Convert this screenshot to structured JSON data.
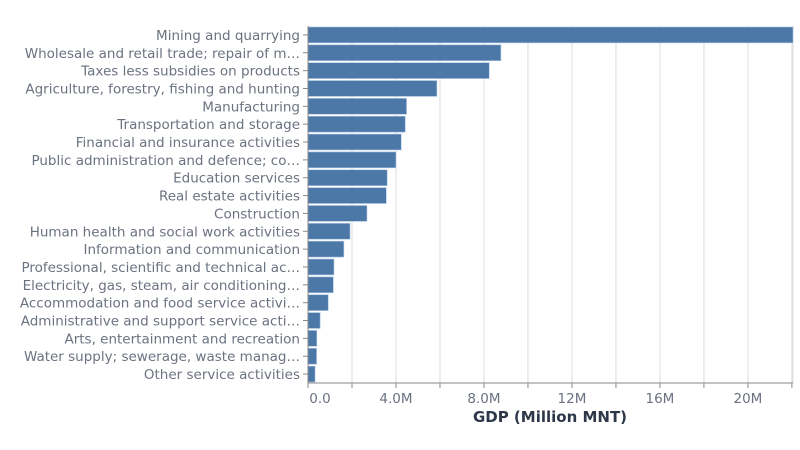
{
  "chart_data": {
    "type": "bar",
    "orientation": "horizontal",
    "title": "",
    "xlabel": "GDP (Million MNT)",
    "ylabel": "",
    "xlim": [
      0,
      22.05
    ],
    "x_unit_note": "values in millions (M) as printed on axis ticks",
    "x_ticks": [
      {
        "value": 0,
        "label": "0.0"
      },
      {
        "value": 4,
        "label": "4.0M"
      },
      {
        "value": 8,
        "label": "8.0M"
      },
      {
        "value": 12,
        "label": "12M"
      },
      {
        "value": 16,
        "label": "16M"
      },
      {
        "value": 20,
        "label": "20M"
      }
    ],
    "grid_step": 2,
    "grid": true,
    "bar_color": "#4c78a8",
    "categories": [
      "Mining and quarrying",
      "Wholesale and retail trade; repair of m…",
      "Taxes less subsidies on products",
      "Agriculture, forestry, fishing and hunting",
      "Manufacturing",
      "Transportation and storage",
      "Financial and insurance activities",
      "Public administration and defence; co…",
      "Education services",
      "Real estate activities",
      "Construction",
      "Human health and social work activities",
      "Information and communication",
      "Professional, scientific and technical ac…",
      "Electricity, gas, steam, air conditioning…",
      "Accommodation and food service activi…",
      "Administrative and support service acti…",
      "Arts, entertainment and recreation",
      "Water supply; sewerage, waste manag…",
      "Other service activities"
    ],
    "values": [
      22.05,
      8.77,
      8.24,
      5.86,
      4.48,
      4.42,
      4.24,
      4.0,
      3.6,
      3.56,
      2.68,
      1.91,
      1.63,
      1.18,
      1.15,
      0.92,
      0.55,
      0.4,
      0.39,
      0.32
    ]
  }
}
